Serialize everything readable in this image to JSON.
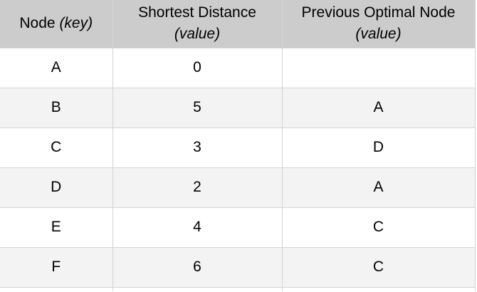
{
  "table": {
    "headers": [
      {
        "main": "Node",
        "sub": "(key)"
      },
      {
        "main": "Shortest Distance",
        "sub": "(value)"
      },
      {
        "main": "Previous Optimal Node",
        "sub": "(value)"
      }
    ],
    "rows": [
      {
        "node": "A",
        "distance": "0",
        "previous": ""
      },
      {
        "node": "B",
        "distance": "5",
        "previous": "A"
      },
      {
        "node": "C",
        "distance": "3",
        "previous": "D"
      },
      {
        "node": "D",
        "distance": "2",
        "previous": "A"
      },
      {
        "node": "E",
        "distance": "4",
        "previous": "C"
      },
      {
        "node": "F",
        "distance": "6",
        "previous": "C"
      }
    ]
  }
}
